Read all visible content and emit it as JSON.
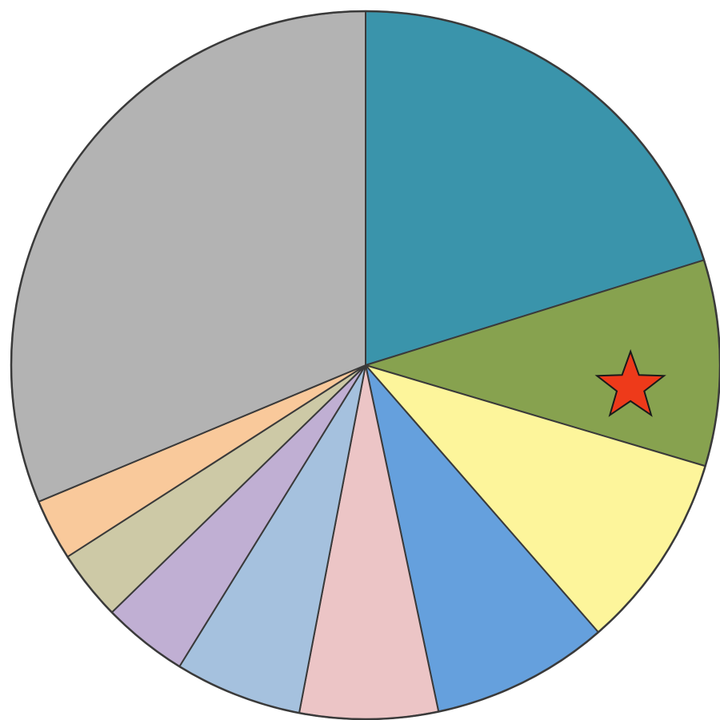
{
  "chart_data": {
    "type": "pie",
    "title": "",
    "start_angle": "12 o'clock",
    "direction": "clockwise",
    "legend": "none",
    "slice_values": [
      20.2,
      9.4,
      9.0,
      8.1,
      6.3,
      5.8,
      3.9,
      3.2,
      2.8,
      31.3
    ],
    "slice_colors": [
      "#3a94ab",
      "#87a24f",
      "#fdf59b",
      "#65a0dd",
      "#ecc5c6",
      "#a5c1de",
      "#c0afd3",
      "#cdc9a6",
      "#f9c99b",
      "#b3b3b3"
    ],
    "highlight": {
      "slice_index": 1,
      "icon": "star-icon",
      "color": "#ee3a1a"
    }
  }
}
